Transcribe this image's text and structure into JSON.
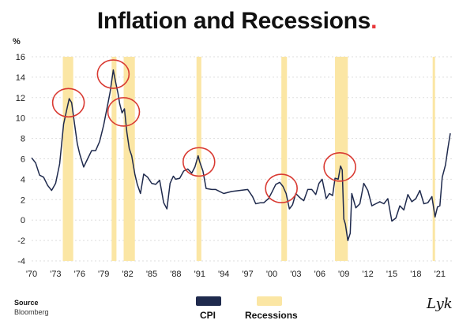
{
  "title": "Inflation and Recessions",
  "title_dot": ".",
  "source": {
    "label": "Source",
    "value": "Bloomberg"
  },
  "logo_text": "Lykeion",
  "colors": {
    "cpi": "#1f2a4d",
    "recession": "#fbe6a4",
    "highlight": "#d93a32",
    "grid": "#dddddd"
  },
  "legend": [
    {
      "label": "CPI",
      "color": "#1f2a4d"
    },
    {
      "label": "Recessions",
      "color": "#fbe6a4"
    }
  ],
  "chart_data": {
    "type": "line",
    "ylabel": "%",
    "ylim": [
      -4,
      16
    ],
    "yticks": [
      -4,
      -2,
      0,
      2,
      4,
      6,
      8,
      10,
      12,
      14,
      16
    ],
    "xlim": [
      1970,
      2022.5
    ],
    "xticks": [
      1970,
      1973,
      1976,
      1979,
      1982,
      1985,
      1988,
      1991,
      1994,
      1997,
      2000,
      2003,
      2006,
      2009,
      2012,
      2015,
      2018,
      2021
    ],
    "xtick_labels": [
      "'70",
      "'73",
      "'76",
      "'79",
      "'82",
      "'85",
      "'88",
      "'91",
      "'94",
      "'97",
      "'00",
      "'03",
      "'06",
      "'09",
      "'12",
      "'15",
      "'18",
      "'21"
    ],
    "grid": true,
    "recessions": [
      [
        1973.9,
        1975.2
      ],
      [
        1980.0,
        1980.6
      ],
      [
        1981.5,
        1982.9
      ],
      [
        1990.6,
        1991.2
      ],
      [
        2001.2,
        2001.9
      ],
      [
        2007.9,
        2009.5
      ],
      [
        2020.1,
        2020.4
      ]
    ],
    "highlights": [
      {
        "x": 1974.6,
        "y": 11.5
      },
      {
        "x": 1980.2,
        "y": 14.3
      },
      {
        "x": 1981.5,
        "y": 10.6
      },
      {
        "x": 1990.9,
        "y": 5.7
      },
      {
        "x": 2001.2,
        "y": 3.1
      },
      {
        "x": 2008.5,
        "y": 5.2
      }
    ],
    "series": [
      {
        "name": "CPI",
        "x": [
          1970.0,
          1970.5,
          1971.0,
          1971.5,
          1972.0,
          1972.5,
          1973.0,
          1973.5,
          1974.0,
          1974.3,
          1974.7,
          1975.0,
          1975.3,
          1975.7,
          1976.0,
          1976.5,
          1977.0,
          1977.5,
          1978.0,
          1978.5,
          1979.0,
          1979.5,
          1979.8,
          1980.2,
          1980.5,
          1980.8,
          1981.0,
          1981.3,
          1981.6,
          1981.9,
          1982.2,
          1982.5,
          1982.9,
          1983.2,
          1983.6,
          1984.0,
          1984.5,
          1985.0,
          1985.5,
          1986.0,
          1986.5,
          1986.9,
          1987.3,
          1987.7,
          1988.0,
          1988.5,
          1989.0,
          1989.5,
          1990.0,
          1990.4,
          1990.8,
          1991.0,
          1991.4,
          1991.8,
          1992.5,
          1993.0,
          1994.0,
          1995.0,
          1996.0,
          1997.0,
          1997.6,
          1998.0,
          1998.6,
          1999.0,
          1999.6,
          2000.0,
          2000.5,
          2001.0,
          2001.4,
          2001.8,
          2002.2,
          2002.6,
          2003.0,
          2003.5,
          2004.0,
          2004.5,
          2005.0,
          2005.5,
          2005.9,
          2006.3,
          2006.8,
          2007.2,
          2007.6,
          2007.9,
          2008.3,
          2008.6,
          2008.8,
          2009.0,
          2009.2,
          2009.5,
          2009.8,
          2010.0,
          2010.5,
          2011.0,
          2011.5,
          2012.0,
          2012.5,
          2013.0,
          2013.5,
          2014.0,
          2014.5,
          2015.0,
          2015.5,
          2016.0,
          2016.5,
          2017.0,
          2017.5,
          2018.0,
          2018.5,
          2019.0,
          2019.5,
          2020.0,
          2020.4,
          2020.7,
          2021.0,
          2021.3,
          2021.7,
          2022.0,
          2022.3
        ],
        "y": [
          6.1,
          5.6,
          4.4,
          4.2,
          3.4,
          2.9,
          3.6,
          5.5,
          9.4,
          10.5,
          11.9,
          11.5,
          9.8,
          7.5,
          6.5,
          5.2,
          6.0,
          6.8,
          6.8,
          7.7,
          9.3,
          11.3,
          12.5,
          14.7,
          13.5,
          12.4,
          11.4,
          10.5,
          10.9,
          8.6,
          7.0,
          6.3,
          4.5,
          3.5,
          2.6,
          4.5,
          4.2,
          3.6,
          3.5,
          3.9,
          1.7,
          1.1,
          3.6,
          4.3,
          4.0,
          4.1,
          4.8,
          5.0,
          4.6,
          5.2,
          6.3,
          5.7,
          4.8,
          3.1,
          3.0,
          3.0,
          2.6,
          2.8,
          2.9,
          3.0,
          2.3,
          1.6,
          1.7,
          1.7,
          2.1,
          2.7,
          3.5,
          3.7,
          3.3,
          2.6,
          1.1,
          1.5,
          2.6,
          2.2,
          1.9,
          3.0,
          3.0,
          2.5,
          3.6,
          4.0,
          2.1,
          2.6,
          2.4,
          4.1,
          4.0,
          5.3,
          4.9,
          0.1,
          -0.4,
          -2.0,
          -1.3,
          2.6,
          1.2,
          1.6,
          3.6,
          2.9,
          1.4,
          1.6,
          1.8,
          1.6,
          2.1,
          -0.1,
          0.2,
          1.4,
          1.0,
          2.5,
          1.8,
          2.1,
          2.9,
          1.6,
          1.7,
          2.3,
          0.3,
          1.3,
          1.4,
          4.2,
          5.4,
          7.0,
          8.5
        ]
      }
    ]
  }
}
